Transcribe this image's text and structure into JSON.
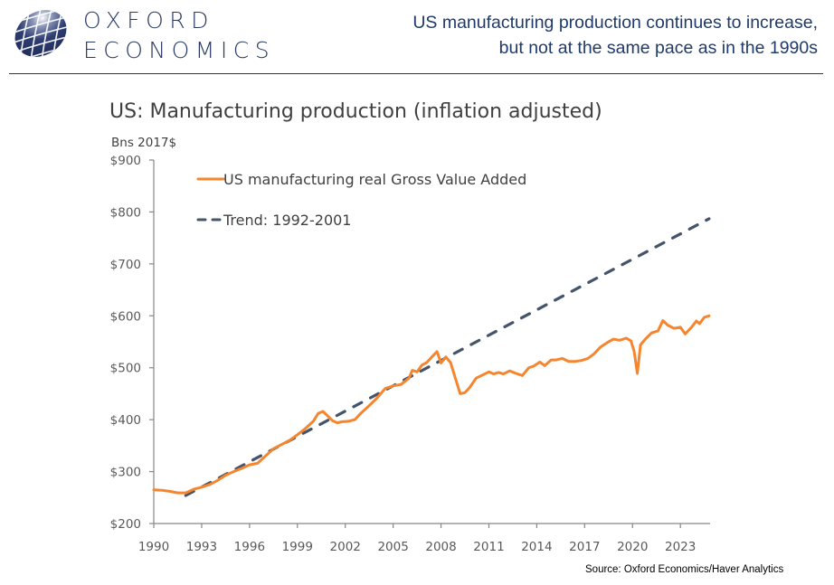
{
  "brand": {
    "name_line1": "OXFORD",
    "name_line2": "ECONOMICS",
    "logo_icon": "globe-icon",
    "colors": {
      "navy": "#2a3a63"
    }
  },
  "headline": {
    "line1": "US manufacturing production continues to increase,",
    "line2": "but not at the same pace as in the 1990s"
  },
  "source": "Source:  Oxford Economics/Haver Analytics",
  "chart_data": {
    "type": "line",
    "title": "US: Manufacturing production (inflation adjusted)",
    "ylabel": "Bns 2017$",
    "xlabel": "",
    "xlim": [
      1990,
      2024.8
    ],
    "ylim": [
      200,
      900
    ],
    "x_ticks": [
      1990,
      1993,
      1996,
      1999,
      2002,
      2005,
      2008,
      2011,
      2014,
      2017,
      2020,
      2023
    ],
    "x_tick_labels": [
      "1990",
      "1993",
      "1996",
      "1999",
      "2002",
      "2005",
      "2008",
      "2011",
      "2014",
      "2017",
      "2020",
      "2023"
    ],
    "y_ticks": [
      200,
      300,
      400,
      500,
      600,
      700,
      800,
      900
    ],
    "y_tick_labels": [
      "$200",
      "$300",
      "$400",
      "$500",
      "$600",
      "$700",
      "$800",
      "$900"
    ],
    "grid": false,
    "legend": {
      "placement": "top-left"
    },
    "series": [
      {
        "name": "US manufacturing real Gross Value Added",
        "color": "#f5862f",
        "style": "solid",
        "x": [
          1990,
          1990.5,
          1991,
          1991.5,
          1992,
          1992.5,
          1993,
          1993.5,
          1994,
          1994.5,
          1995,
          1995.5,
          1996,
          1996.5,
          1997,
          1997.5,
          1998,
          1998.5,
          1999,
          1999.5,
          2000,
          2000.3,
          2000.6,
          2000.9,
          2001.2,
          2001.5,
          2001.8,
          2002.2,
          2002.6,
          2003,
          2003.5,
          2004,
          2004.5,
          2005,
          2005.5,
          2006,
          2006.2,
          2006.5,
          2006.8,
          2007.1,
          2007.4,
          2007.75,
          2008,
          2008.3,
          2008.6,
          2008.9,
          2009.2,
          2009.5,
          2009.8,
          2010.2,
          2010.6,
          2011,
          2011.3,
          2011.6,
          2011.9,
          2012.3,
          2012.7,
          2013.1,
          2013.5,
          2013.8,
          2014.2,
          2014.5,
          2014.9,
          2015.2,
          2015.6,
          2016,
          2016.4,
          2016.8,
          2017.2,
          2017.6,
          2018,
          2018.4,
          2018.8,
          2019.2,
          2019.6,
          2019.9,
          2020.1,
          2020.3,
          2020.5,
          2020.8,
          2021.2,
          2021.6,
          2021.9,
          2022.2,
          2022.6,
          2023,
          2023.3,
          2023.7,
          2024,
          2024.2,
          2024.5,
          2024.8
        ],
        "values": [
          265,
          264,
          262,
          259,
          259,
          266,
          270,
          275,
          283,
          293,
          300,
          306,
          313,
          316,
          330,
          344,
          352,
          360,
          371,
          383,
          397,
          412,
          416,
          407,
          398,
          394,
          396,
          397,
          400,
          413,
          427,
          442,
          460,
          465,
          468,
          480,
          495,
          492,
          505,
          510,
          520,
          531,
          509,
          521,
          510,
          480,
          450,
          452,
          462,
          480,
          486,
          492,
          488,
          491,
          488,
          494,
          489,
          485,
          500,
          503,
          511,
          504,
          515,
          515,
          518,
          512,
          512,
          514,
          518,
          527,
          540,
          548,
          555,
          553,
          557,
          552,
          532,
          489,
          544,
          555,
          567,
          571,
          591,
          582,
          576,
          578,
          565,
          578,
          590,
          585,
          597,
          600
        ]
      },
      {
        "name": "Trend: 1992-2001",
        "color": "#44546a",
        "style": "dashed",
        "x": [
          1992,
          2024.8
        ],
        "values": [
          254,
          787
        ]
      }
    ]
  }
}
